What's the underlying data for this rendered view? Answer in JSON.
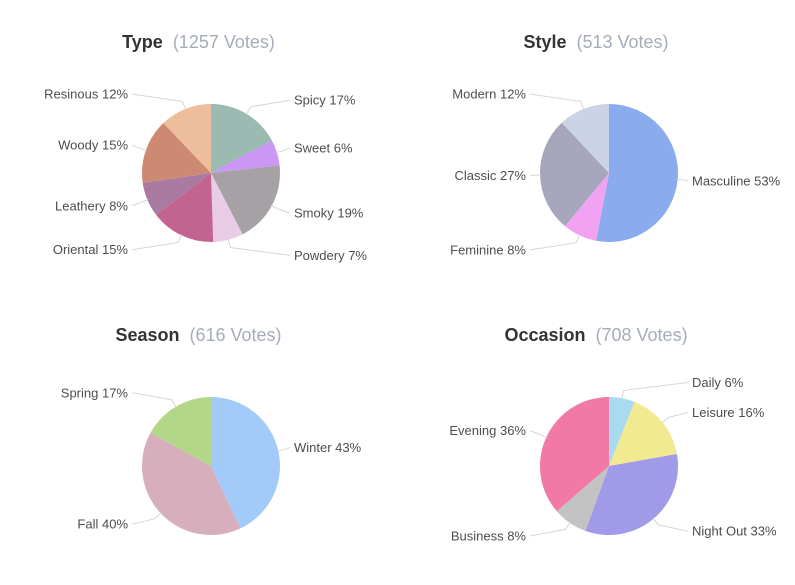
{
  "theme": {
    "background": "#ffffff",
    "title_color": "#333333",
    "subtitle_color": "#a6adb6",
    "label_color": "#4d4d4d",
    "connector_color": "#d6d6d6"
  },
  "chart_data": [
    {
      "type": "pie",
      "title": "Type",
      "subtitle": "(1257 Votes)",
      "total_votes": 1257,
      "unit": "%",
      "legend": "none",
      "start_angle": 0,
      "label_position": "outside-with-connectors",
      "labels": [
        "Spicy",
        "Sweet",
        "Smoky",
        "Powdery",
        "Oriental",
        "Leathery",
        "Woody",
        "Resinous"
      ],
      "values": [
        17,
        6,
        19,
        7,
        15,
        8,
        15,
        12
      ],
      "colors": [
        "#9bbab1",
        "#cb97f5",
        "#a5a1a5",
        "#e8cce6",
        "#c2648f",
        "#ab7aa2",
        "#cc8a73",
        "#eebe9c"
      ]
    },
    {
      "type": "pie",
      "title": "Style",
      "subtitle": "(513 Votes)",
      "total_votes": 513,
      "unit": "%",
      "legend": "none",
      "start_angle": 0,
      "label_position": "outside-with-connectors",
      "labels": [
        "Masculine",
        "Feminine",
        "Classic",
        "Modern"
      ],
      "values": [
        53,
        8,
        27,
        12
      ],
      "colors": [
        "#8aabee",
        "#f2a2f2",
        "#a6a7bd",
        "#ccd3e6"
      ]
    },
    {
      "type": "pie",
      "title": "Season",
      "subtitle": "(616 Votes)",
      "total_votes": 616,
      "unit": "%",
      "legend": "none",
      "start_angle": 0,
      "label_position": "outside-with-connectors",
      "labels": [
        "Winter",
        "Fall",
        "Spring"
      ],
      "values": [
        43,
        40,
        17
      ],
      "colors": [
        "#a3cbfa",
        "#d7aebb",
        "#b2d887"
      ]
    },
    {
      "type": "pie",
      "title": "Occasion",
      "subtitle": "(708 Votes)",
      "total_votes": 708,
      "unit": "%",
      "legend": "none",
      "start_angle": 0,
      "label_position": "outside-with-connectors",
      "labels": [
        "Daily",
        "Leisure",
        "Night Out",
        "Business",
        "Evening"
      ],
      "values": [
        6,
        16,
        33,
        8,
        36
      ],
      "colors": [
        "#a8daf0",
        "#f2ea90",
        "#a09ae8",
        "#c3c3c3",
        "#f279a6"
      ]
    }
  ]
}
